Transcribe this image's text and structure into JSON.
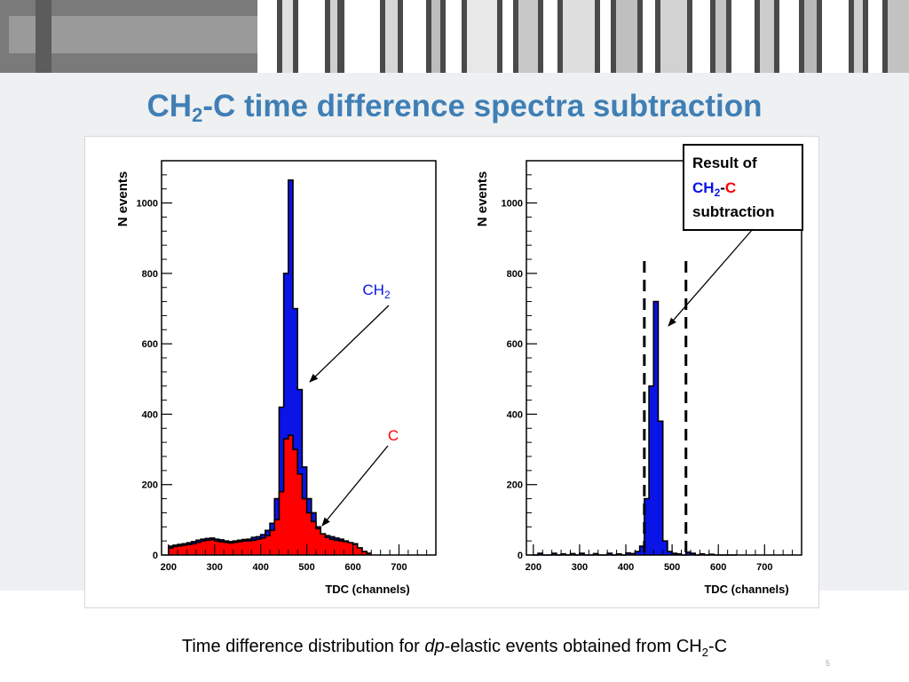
{
  "slide": {
    "title_main": "CH",
    "title_sub": "2",
    "title_rest": "-C time difference spectra subtraction",
    "caption_pre": "Time difference distribution for ",
    "caption_em": "dp",
    "caption_mid": "-elastic events obtained from CH",
    "caption_sub": "2",
    "caption_post": "-C",
    "page_number": "5"
  },
  "colors": {
    "title": "#3f7fb5",
    "ch2_fill": "#0a14e6",
    "c_fill": "#ff0000",
    "outline": "#000000"
  },
  "chart_data": [
    {
      "type": "area",
      "title": "",
      "xlabel": "TDC (channels)",
      "ylabel": "N events",
      "xlim": [
        185,
        780
      ],
      "ylim": [
        0,
        1120
      ],
      "xticks": [
        200,
        300,
        400,
        500,
        600,
        700
      ],
      "yticks": [
        0,
        200,
        400,
        600,
        800,
        1000
      ],
      "bin_width": 10,
      "series": [
        {
          "name": "CH2",
          "color": "#0a14e6",
          "x": [
            200,
            210,
            220,
            230,
            240,
            250,
            260,
            270,
            280,
            290,
            300,
            310,
            320,
            330,
            340,
            350,
            360,
            370,
            380,
            390,
            400,
            410,
            420,
            430,
            440,
            450,
            460,
            470,
            480,
            490,
            500,
            510,
            520,
            530,
            540,
            550,
            560,
            570,
            580,
            590,
            600,
            610,
            620,
            630
          ],
          "values": [
            25,
            28,
            30,
            32,
            35,
            38,
            42,
            45,
            47,
            48,
            45,
            43,
            40,
            38,
            40,
            42,
            44,
            45,
            50,
            52,
            58,
            70,
            90,
            160,
            420,
            800,
            1065,
            700,
            470,
            250,
            160,
            120,
            80,
            60,
            55,
            52,
            48,
            45,
            40,
            35,
            32,
            20,
            10,
            5
          ]
        },
        {
          "name": "C",
          "color": "#ff0000",
          "x": [
            200,
            210,
            220,
            230,
            240,
            250,
            260,
            270,
            280,
            290,
            300,
            310,
            320,
            330,
            340,
            350,
            360,
            370,
            380,
            390,
            400,
            410,
            420,
            430,
            440,
            450,
            460,
            470,
            480,
            490,
            500,
            510,
            520,
            530,
            540,
            550,
            560,
            570,
            580,
            590,
            600,
            610,
            620,
            630
          ],
          "values": [
            20,
            24,
            26,
            28,
            30,
            32,
            36,
            40,
            42,
            44,
            40,
            38,
            36,
            34,
            36,
            38,
            40,
            40,
            42,
            45,
            48,
            55,
            70,
            100,
            180,
            330,
            340,
            300,
            230,
            160,
            120,
            95,
            75,
            60,
            50,
            45,
            42,
            40,
            38,
            35,
            30,
            20,
            10,
            5
          ]
        }
      ],
      "annotations": [
        {
          "label_main": "CH",
          "label_sub": "2",
          "color": "#0a14e6"
        },
        {
          "label_main": "C",
          "label_sub": "",
          "color": "#ff0000"
        }
      ]
    },
    {
      "type": "area",
      "title": "",
      "xlabel": "TDC (channels)",
      "ylabel": "N events",
      "xlim": [
        185,
        780
      ],
      "ylim": [
        0,
        1120
      ],
      "xticks": [
        200,
        300,
        400,
        500,
        600,
        700
      ],
      "yticks": [
        0,
        200,
        400,
        600,
        800,
        1000
      ],
      "bin_width": 10,
      "series": [
        {
          "name": "CH2-C",
          "color": "#0a14e6",
          "x": [
            200,
            210,
            220,
            230,
            240,
            250,
            260,
            270,
            280,
            290,
            300,
            310,
            320,
            330,
            340,
            350,
            360,
            370,
            380,
            390,
            400,
            410,
            420,
            430,
            440,
            450,
            460,
            470,
            480,
            490,
            500,
            510,
            520,
            530,
            540,
            550,
            560,
            570,
            580,
            590,
            600,
            610,
            620,
            630
          ],
          "values": [
            0,
            5,
            0,
            -4,
            5,
            0,
            3,
            -3,
            4,
            0,
            5,
            -3,
            0,
            4,
            0,
            -2,
            5,
            0,
            3,
            0,
            6,
            4,
            10,
            25,
            160,
            480,
            720,
            380,
            40,
            10,
            5,
            3,
            0,
            8,
            5,
            0,
            3,
            0,
            2,
            0,
            0,
            0,
            0,
            0
          ]
        }
      ],
      "cut_lines_x": [
        440,
        530
      ],
      "legend_box": {
        "line1": "Result of",
        "line2_a": "CH",
        "line2_sub": "2",
        "line2_dash": "-",
        "line2_c": "C",
        "line3": "subtraction"
      }
    }
  ]
}
